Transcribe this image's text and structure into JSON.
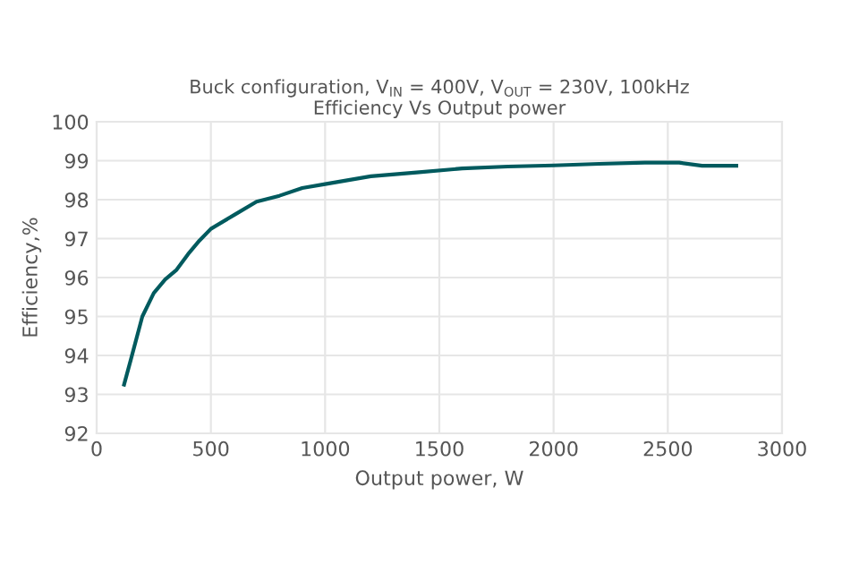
{
  "chart_data": {
    "type": "line",
    "title": "Buck configuration, V$_{IN}$ = 400V, V$_{OUT}$ = 230V, 100kHz\nEfficiency Vs Output power",
    "xlabel": "Output power, W",
    "ylabel": "Efficiency,%",
    "x": [
      120,
      150,
      200,
      250,
      300,
      350,
      400,
      450,
      500,
      600,
      700,
      800,
      900,
      1000,
      1200,
      1400,
      1600,
      1800,
      2000,
      2200,
      2400,
      2550,
      2650,
      2800
    ],
    "series": [
      {
        "color": "#005a5e",
        "values": [
          93.25,
          93.9,
          95.0,
          95.6,
          95.95,
          96.2,
          96.6,
          96.95,
          97.25,
          97.6,
          97.95,
          98.1,
          98.3,
          98.4,
          98.6,
          98.7,
          98.8,
          98.85,
          98.88,
          98.92,
          98.95,
          98.95,
          98.87,
          98.87
        ]
      }
    ],
    "xlim": [
      0,
      3000
    ],
    "xticks": [
      0,
      500,
      1000,
      1500,
      2000,
      2500,
      3000
    ],
    "ylim": [
      92,
      100
    ],
    "yticks": [
      92,
      93,
      94,
      95,
      96,
      97,
      98,
      99,
      100
    ],
    "grid": true,
    "marker": "none",
    "line_style": "solid"
  }
}
